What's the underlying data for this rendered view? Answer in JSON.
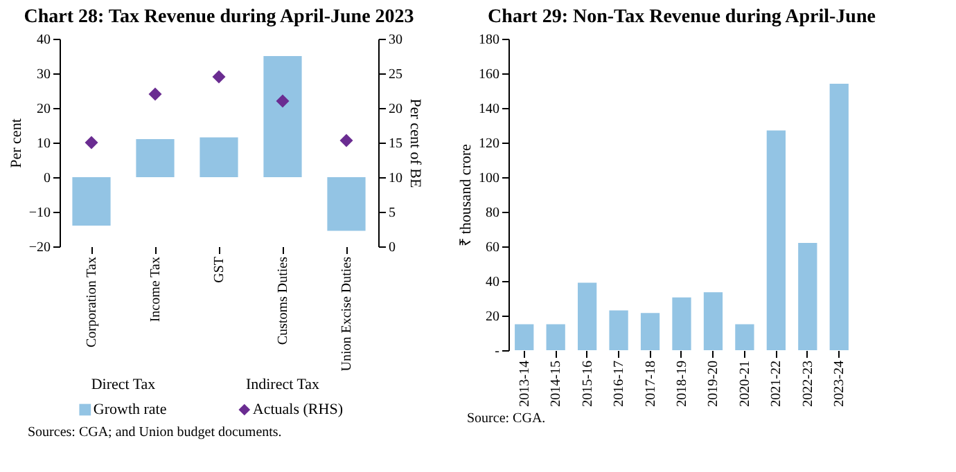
{
  "chart_data": [
    {
      "type": "bar",
      "title": "Chart 28: Tax Revenue during April-June 2023",
      "categories": [
        "Corporation Tax",
        "Income Tax",
        "GST",
        "Customs Duties",
        "Union Excise Duties"
      ],
      "series": [
        {
          "name": "Growth rate",
          "type": "bar",
          "color": "#93c4e4",
          "values": [
            -14,
            11,
            11.5,
            35,
            -15.5
          ]
        },
        {
          "name": "Actuals (RHS)",
          "type": "scatter",
          "axis": "y2",
          "marker": "diamond",
          "color": "#6a2c91",
          "values": [
            15,
            22,
            24.5,
            21,
            15.3
          ]
        }
      ],
      "ylabel": "Per cent",
      "y2label": "Per cent of BE",
      "ylim": [
        -20,
        40
      ],
      "yticks": [
        -20,
        -10,
        0,
        10,
        20,
        30,
        40
      ],
      "y2lim": [
        0,
        30
      ],
      "y2ticks": [
        0,
        5,
        10,
        15,
        20,
        25,
        30
      ],
      "legend": "bottom",
      "grid": false,
      "annotations": [
        "Direct Tax",
        "Indirect Tax",
        "Sources: CGA; and Union budget documents."
      ]
    },
    {
      "type": "bar",
      "title": "Chart 29: Non-Tax Revenue during April-June",
      "categories": [
        "2013-14",
        "2014-15",
        "2015-16",
        "2016-17",
        "2017-18",
        "2018-19",
        "2019-20",
        "2020-21",
        "2021-22",
        "2022-23",
        "2023-24"
      ],
      "values": [
        15,
        15,
        39,
        23,
        21.5,
        30.5,
        33.5,
        15,
        127,
        62,
        154
      ],
      "color": "#93c4e4",
      "ylabel": "₹ thousand crore",
      "ylim": [
        0,
        180
      ],
      "yticks": [
        {
          "value": 0,
          "label": "-"
        },
        20,
        40,
        60,
        80,
        100,
        120,
        140,
        160,
        180
      ],
      "grid": false,
      "annotations": [
        "Source: CGA."
      ]
    }
  ]
}
